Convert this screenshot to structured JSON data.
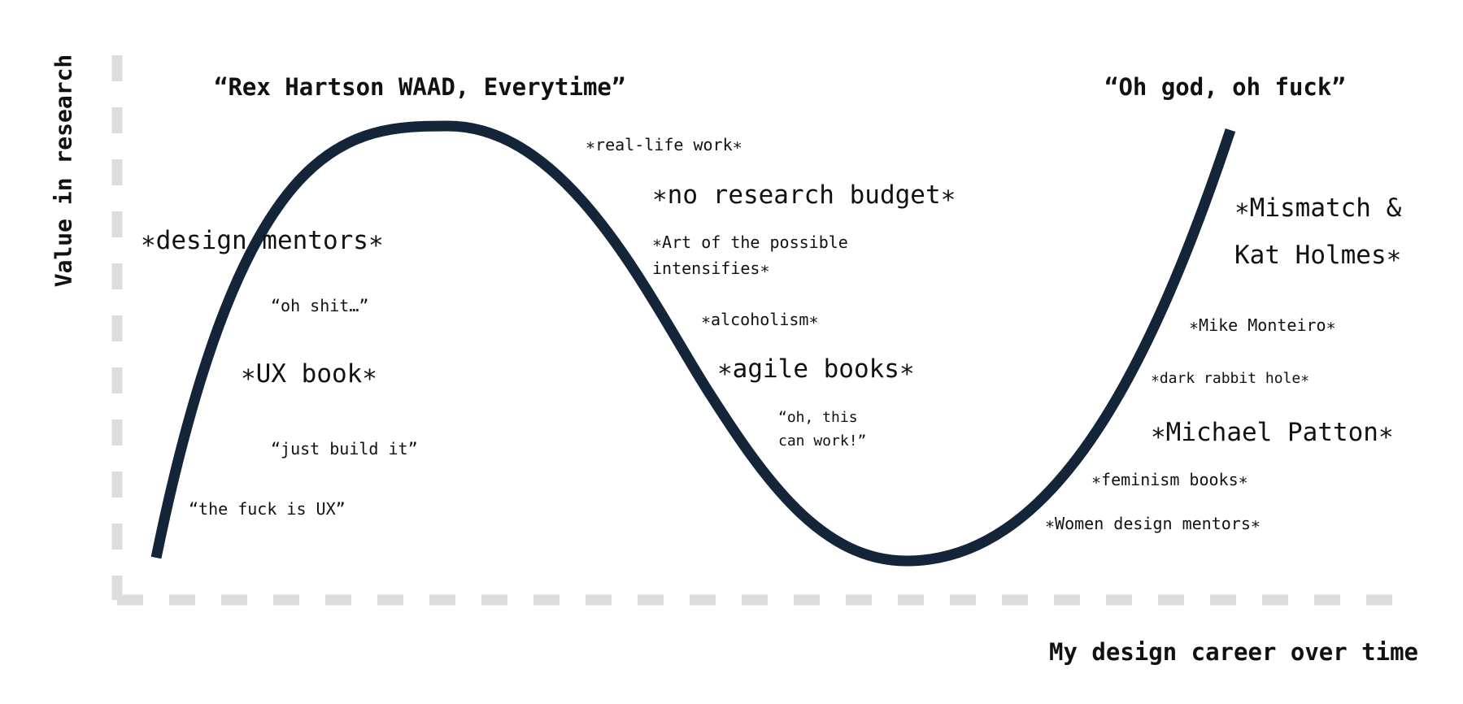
{
  "axes": {
    "y_label": "Value in research",
    "x_label": "My design career over time",
    "axis_color": "#dcdcdc"
  },
  "curve": {
    "color": "#14253a"
  },
  "peaks": {
    "left_quote": "“Rex Hartson WAAD, Everytime”",
    "right_quote": "“Oh god, oh fuck”"
  },
  "rising": {
    "design_mentors": "∗design  mentors∗",
    "oh_shit": "“oh shit…”",
    "ux_book": "∗UX book∗",
    "just_build_it": "“just build it”",
    "the_fuck_is_ux": "“the fuck is UX”"
  },
  "falling": {
    "real_life_work": "∗real-life work∗",
    "no_research_budget": "∗no research budget∗",
    "art_of_possible": "∗Art of the possible intensifies∗",
    "alcoholism": "∗alcoholism∗",
    "agile_books": "∗agile books∗",
    "oh_this_can_work": "“oh, this can work!”"
  },
  "recovery": {
    "mismatch": "∗Mismatch & Kat Holmes∗",
    "mike_monteiro": "∗Mike Monteiro∗",
    "dark_rabbit_hole": "∗dark rabbit hole∗",
    "michael_patton": "∗Michael Patton∗",
    "feminism_books": "∗feminism books∗",
    "women_design_mentors": "∗Women design mentors∗"
  }
}
